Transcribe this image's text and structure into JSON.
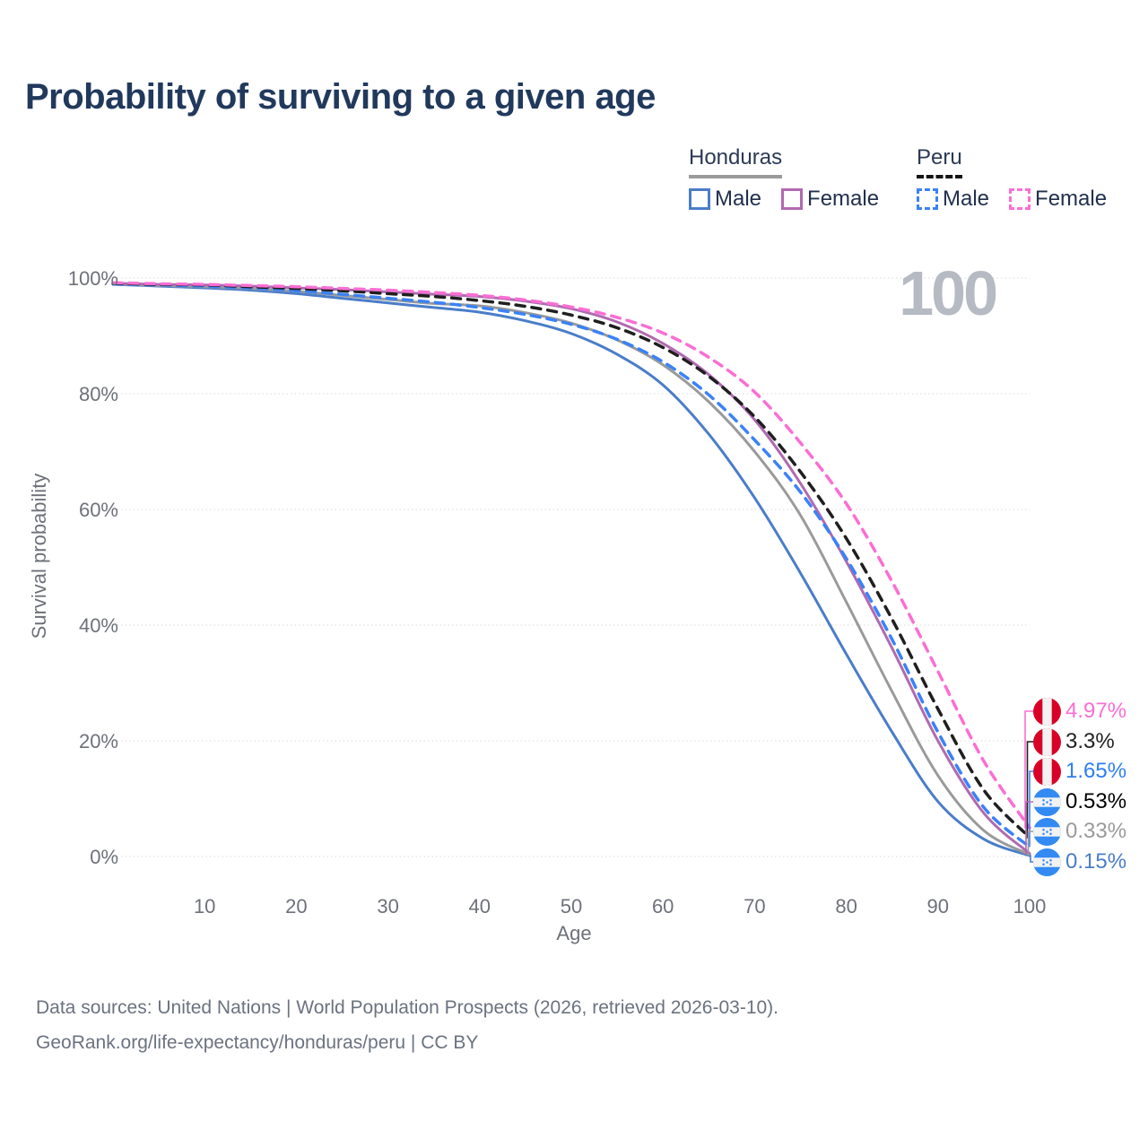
{
  "title": "Probability of surviving to a given age",
  "hover_age_indicator": "100",
  "legend": {
    "groups": [
      {
        "label": "Honduras",
        "line_style": "solid",
        "underline_color": "#9a9a9a",
        "items": [
          {
            "label": "Male",
            "color": "#4a7dc9",
            "dashed": false
          },
          {
            "label": "Female",
            "color": "#b06ab0",
            "dashed": false
          }
        ]
      },
      {
        "label": "Peru",
        "line_style": "dashed",
        "underline_color": "#141414",
        "items": [
          {
            "label": "Male",
            "color": "#3b82f6",
            "dashed": true
          },
          {
            "label": "Female",
            "color": "#fb6ed4",
            "dashed": true
          }
        ]
      }
    ]
  },
  "chart_data": {
    "type": "line",
    "title": "Probability of surviving to a given age",
    "xlabel": "Age",
    "ylabel": "Survival probability",
    "xlim": [
      0,
      100
    ],
    "ylim": [
      0,
      100
    ],
    "grid": "horizontal",
    "x_ticks": [
      10,
      20,
      30,
      40,
      50,
      60,
      70,
      80,
      90,
      100
    ],
    "y_ticks": [
      "0%",
      "20%",
      "40%",
      "60%",
      "80%",
      "100%"
    ],
    "y_tick_values": [
      0,
      20,
      40,
      60,
      80,
      100
    ],
    "x": [
      0,
      5,
      10,
      15,
      20,
      25,
      30,
      35,
      40,
      45,
      50,
      55,
      60,
      65,
      70,
      75,
      80,
      85,
      90,
      95,
      100
    ],
    "series": [
      {
        "id": "honduras-male",
        "country": "Honduras",
        "sex": "Male",
        "color": "#4a7dc9",
        "dashed": false,
        "end_label": "0.15%",
        "label_color": "#4a7dc9",
        "values": [
          98.9,
          98.6,
          98.3,
          97.9,
          97.3,
          96.5,
          95.7,
          94.9,
          94.1,
          92.6,
          90.4,
          86.8,
          81.5,
          73.0,
          62.0,
          49.0,
          35.0,
          21.5,
          9.5,
          3.0,
          0.15
        ]
      },
      {
        "id": "honduras-all",
        "country": "Honduras",
        "sex": "All",
        "color": "#9a9a9a",
        "dashed": false,
        "end_label": "0.33%",
        "label_color": "#9a9a9a",
        "values": [
          99.0,
          98.7,
          98.5,
          98.2,
          97.7,
          97.0,
          96.3,
          95.6,
          95.2,
          94.0,
          92.2,
          89.3,
          85.0,
          78.6,
          70.0,
          59.0,
          44.0,
          28.5,
          14.0,
          4.5,
          0.33
        ]
      },
      {
        "id": "honduras-female",
        "country": "Honduras",
        "sex": "Female",
        "color": "#b06ab0",
        "dashed": false,
        "end_label": "0.53%",
        "label_color": "#a express05fa5",
        "values": [
          99.1,
          98.9,
          98.8,
          98.6,
          98.3,
          98.0,
          97.6,
          97.2,
          96.8,
          96.0,
          94.7,
          92.4,
          88.7,
          83.3,
          75.5,
          64.5,
          51.0,
          36.0,
          20.0,
          7.5,
          0.53
        ]
      },
      {
        "id": "peru-male",
        "country": "Peru",
        "sex": "Male",
        "color": "#3b82f6",
        "dashed": true,
        "end_label": "1.65%",
        "label_color": "#2e7ff2",
        "values": [
          99.0,
          98.8,
          98.6,
          98.3,
          97.8,
          97.2,
          96.5,
          95.8,
          94.9,
          93.7,
          92.0,
          89.4,
          85.5,
          79.8,
          72.0,
          63.0,
          51.5,
          37.5,
          21.5,
          8.5,
          1.65
        ]
      },
      {
        "id": "peru-all",
        "country": "Peru",
        "sex": "All",
        "color": "#1f1f1f",
        "dashed": true,
        "end_label": "3.3%",
        "label_color": "#222222",
        "values": [
          99.1,
          98.9,
          98.8,
          98.5,
          98.2,
          97.8,
          97.3,
          96.8,
          96.1,
          95.1,
          93.6,
          91.4,
          88.0,
          83.0,
          76.0,
          66.5,
          55.0,
          41.0,
          25.5,
          11.5,
          3.3
        ]
      },
      {
        "id": "peru-female",
        "country": "Peru",
        "sex": "Female",
        "color": "#fb6ed4",
        "dashed": true,
        "end_label": "4.97%",
        "label_color": "#fb6ed4",
        "values": [
          99.2,
          99.0,
          98.9,
          98.7,
          98.5,
          98.2,
          97.9,
          97.5,
          97.0,
          96.2,
          95.0,
          93.2,
          90.5,
          86.3,
          80.3,
          71.5,
          61.0,
          47.5,
          32.0,
          16.5,
          4.97
        ]
      }
    ],
    "end_label_order": [
      "peru-female",
      "peru-all",
      "peru-male",
      "honduras-female",
      "honduras-all",
      "honduras-male"
    ]
  },
  "flags": {
    "peru_red": "#d80027",
    "honduras_blue": "#338af3",
    "flag_white": "#f2f2f2"
  },
  "footer": {
    "line1": "Data sources: United Nations | World Population Prospects (2026, retrieved 2026-03-10).",
    "line2": "GeoRank.org/life-expectancy/honduras/peru | CC BY"
  }
}
